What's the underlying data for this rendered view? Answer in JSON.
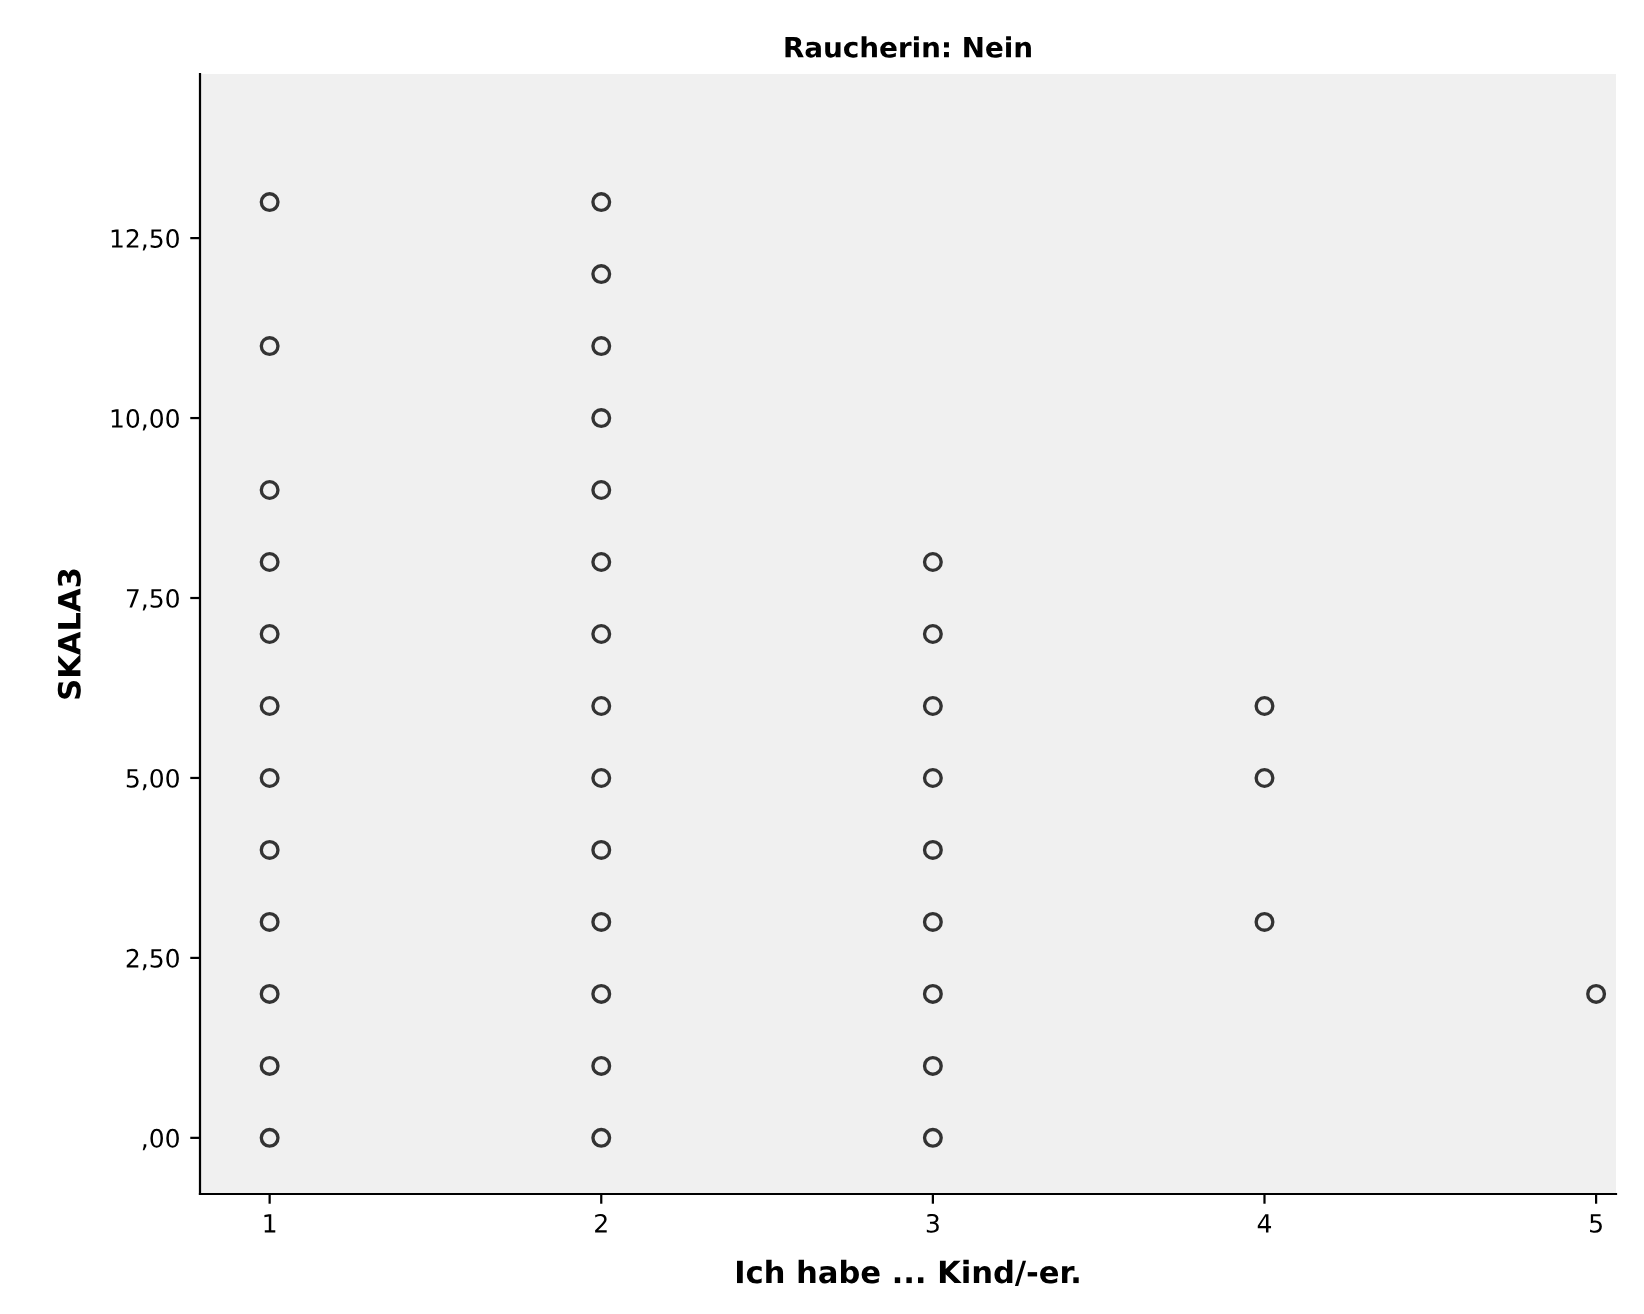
{
  "chart_data": {
    "type": "scatter",
    "title": "Raucherin: Nein",
    "xlabel": "Ich habe ... Kind/-er.",
    "ylabel": "SKALA3",
    "series": [
      {
        "color": "#333333",
        "x": [
          1,
          1,
          1,
          1,
          1,
          1,
          1,
          1,
          1,
          1,
          1,
          1,
          2,
          2,
          2,
          2,
          2,
          2,
          2,
          2,
          2,
          2,
          2,
          2,
          2,
          2,
          3,
          3,
          3,
          3,
          3,
          3,
          3,
          3,
          3,
          4,
          4,
          4,
          5
        ],
        "values": [
          0,
          1,
          2,
          3,
          4,
          5,
          6,
          7,
          8,
          9,
          11,
          13,
          0,
          1,
          2,
          3,
          4,
          5,
          6,
          7,
          8,
          9,
          10,
          11,
          12,
          13,
          0,
          1,
          2,
          3,
          4,
          5,
          6,
          7,
          8,
          3,
          5,
          6,
          2
        ]
      }
    ],
    "marker": "circle",
    "xlim": [
      0.79,
      5.06
    ],
    "ylim": [
      -0.78,
      14.78
    ],
    "xticks": [
      1,
      2,
      3,
      4,
      5
    ],
    "yticks": [
      {
        "value": 0,
        "label": ",00"
      },
      {
        "value": 2.5,
        "label": "2,50"
      },
      {
        "value": 5,
        "label": "5,00"
      },
      {
        "value": 7.5,
        "label": "7,50"
      },
      {
        "value": 10,
        "label": "10,00"
      },
      {
        "value": 12.5,
        "label": "12,50"
      }
    ],
    "grid": false,
    "legend": false
  }
}
